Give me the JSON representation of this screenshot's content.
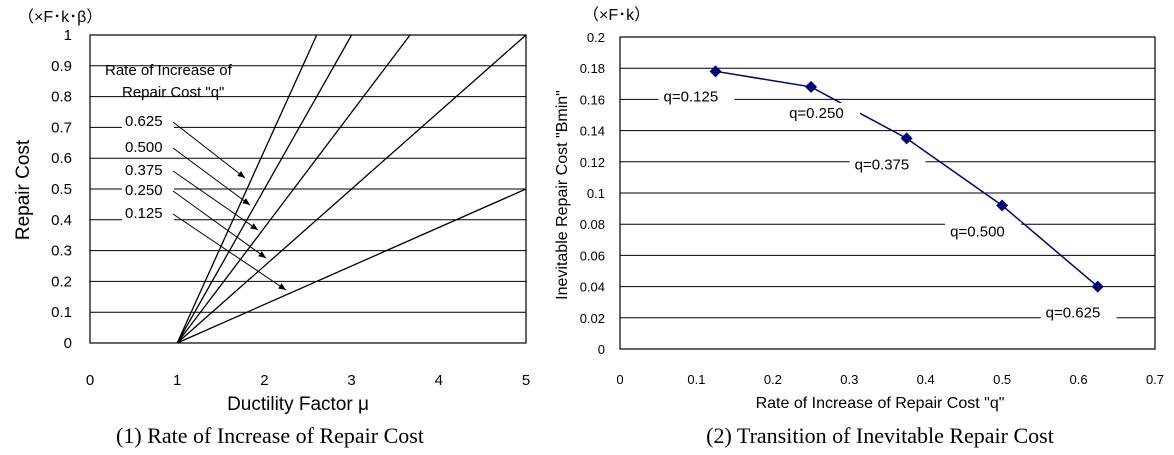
{
  "chart_data": [
    {
      "type": "line",
      "unit_label": "（×F･k･β）",
      "xlabel": "Ductility Factor μ",
      "ylabel": "Repair Cost",
      "xlim": [
        0,
        5
      ],
      "ylim": [
        0,
        1
      ],
      "x_ticks": [
        "0",
        "1",
        "2",
        "3",
        "4",
        "5"
      ],
      "y_ticks": [
        "0",
        "0.1",
        "0.2",
        "0.3",
        "0.4",
        "0.5",
        "0.6",
        "0.7",
        "0.8",
        "0.9",
        "1"
      ],
      "grid": "horizontal",
      "legend_title": [
        "Rate of Increase of",
        "Repair Cost \"q\""
      ],
      "series": [
        {
          "name": "0.625",
          "x": [
            1,
            2.6
          ],
          "y": [
            0,
            1
          ]
        },
        {
          "name": "0.500",
          "x": [
            1,
            3.0
          ],
          "y": [
            0,
            1
          ]
        },
        {
          "name": "0.375",
          "x": [
            1,
            3.67
          ],
          "y": [
            0,
            1
          ]
        },
        {
          "name": "0.250",
          "x": [
            1,
            5.0
          ],
          "y": [
            0,
            1
          ]
        },
        {
          "name": "0.125",
          "x": [
            1,
            5.0
          ],
          "y": [
            0,
            0.5
          ]
        }
      ],
      "caption": "(1) Rate of Increase of Repair Cost"
    },
    {
      "type": "line",
      "unit_label": "（×F･k）",
      "xlabel": "Rate of Increase of Repair Cost \"q\"",
      "ylabel": "Inevitable Repair Cost \"Bmin\"",
      "xlim": [
        0,
        0.7
      ],
      "ylim": [
        0,
        0.2
      ],
      "x_ticks": [
        "0",
        "0.1",
        "0.2",
        "0.3",
        "0.4",
        "0.5",
        "0.6",
        "0.7"
      ],
      "y_ticks": [
        "0",
        "0.02",
        "0.04",
        "0.06",
        "0.08",
        "0.1",
        "0.12",
        "0.14",
        "0.16",
        "0.18",
        "0.2"
      ],
      "grid": "horizontal",
      "series_color": "#000080",
      "points": [
        {
          "x": 0.125,
          "y": 0.178,
          "label": "q=0.125"
        },
        {
          "x": 0.25,
          "y": 0.168,
          "label": "q=0.250"
        },
        {
          "x": 0.375,
          "y": 0.135,
          "label": "q=0.375"
        },
        {
          "x": 0.5,
          "y": 0.092,
          "label": "q=0.500"
        },
        {
          "x": 0.625,
          "y": 0.04,
          "label": "q=0.625"
        }
      ],
      "caption": "(2) Transition of Inevitable Repair Cost"
    }
  ]
}
